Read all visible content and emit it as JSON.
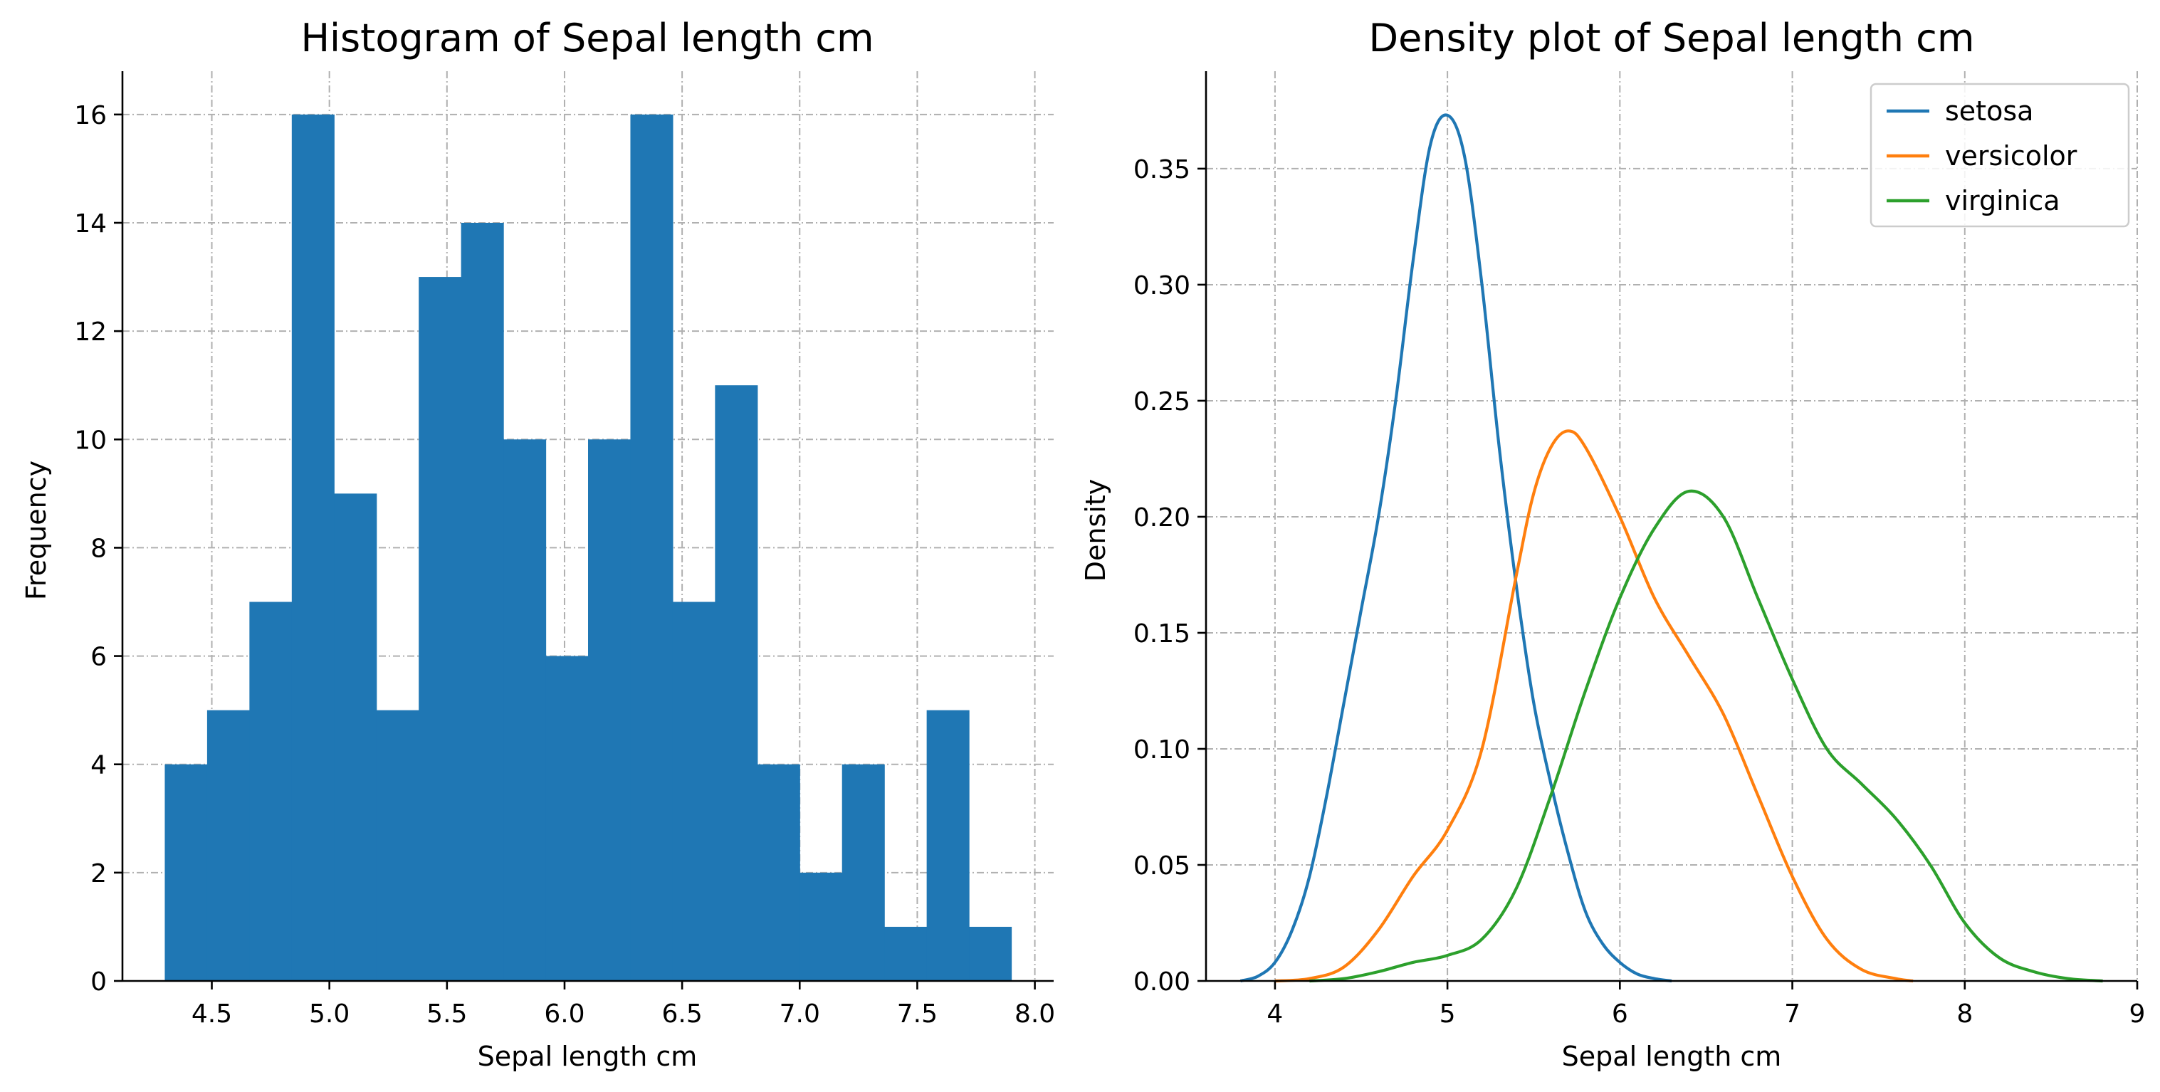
{
  "chart_data": [
    {
      "type": "bar",
      "title": "Histogram of Sepal length cm",
      "xlabel": "Sepal length cm",
      "ylabel": "Frequency",
      "xlim": [
        4.12,
        8.08
      ],
      "ylim": [
        0,
        16.8
      ],
      "xticks": [
        "4.5",
        "5.0",
        "5.5",
        "6.0",
        "6.5",
        "7.0",
        "7.5",
        "8.0"
      ],
      "yticks": [
        "0",
        "2",
        "4",
        "6",
        "8",
        "10",
        "12",
        "14",
        "16"
      ],
      "bin_edges": [
        4.3,
        4.48,
        4.66,
        4.84,
        5.02,
        5.2,
        5.38,
        5.56,
        5.74,
        5.92,
        6.1,
        6.28,
        6.46,
        6.64,
        6.82,
        7.0,
        7.18,
        7.36,
        7.54,
        7.72,
        7.9
      ],
      "values": [
        4,
        5,
        7,
        16,
        9,
        5,
        13,
        14,
        10,
        6,
        10,
        16,
        7,
        11,
        4,
        2,
        4,
        1,
        5,
        1
      ],
      "bar_color": "#1f77b4",
      "grid": true
    },
    {
      "type": "line",
      "title": "Density plot of Sepal length cm",
      "xlabel": "Sepal length cm",
      "ylabel": "Density",
      "xlim": [
        3.6,
        9.0
      ],
      "ylim": [
        0,
        0.392
      ],
      "xticks": [
        "4",
        "5",
        "6",
        "7",
        "8",
        "9"
      ],
      "yticks": [
        "0.00",
        "0.05",
        "0.10",
        "0.15",
        "0.20",
        "0.25",
        "0.30",
        "0.35"
      ],
      "legend_position": "top-right",
      "grid": true,
      "series": [
        {
          "name": "setosa",
          "color": "#1f77b4",
          "x": [
            3.8,
            3.9,
            4.0,
            4.1,
            4.2,
            4.3,
            4.4,
            4.5,
            4.6,
            4.7,
            4.8,
            4.9,
            5.0,
            5.1,
            5.2,
            5.3,
            5.4,
            5.5,
            5.6,
            5.7,
            5.8,
            5.9,
            6.0,
            6.1,
            6.2,
            6.3
          ],
          "y": [
            0.0,
            0.002,
            0.008,
            0.022,
            0.045,
            0.08,
            0.12,
            0.16,
            0.2,
            0.25,
            0.31,
            0.36,
            0.373,
            0.355,
            0.3,
            0.23,
            0.17,
            0.12,
            0.085,
            0.055,
            0.03,
            0.016,
            0.008,
            0.003,
            0.001,
            0.0
          ]
        },
        {
          "name": "versicolor",
          "color": "#ff7f0e",
          "x": [
            4.0,
            4.2,
            4.4,
            4.6,
            4.8,
            5.0,
            5.2,
            5.4,
            5.5,
            5.6,
            5.7,
            5.8,
            6.0,
            6.2,
            6.4,
            6.6,
            6.8,
            7.0,
            7.2,
            7.4,
            7.6,
            7.7
          ],
          "y": [
            0.0,
            0.001,
            0.006,
            0.022,
            0.045,
            0.065,
            0.1,
            0.175,
            0.21,
            0.23,
            0.237,
            0.23,
            0.2,
            0.165,
            0.14,
            0.115,
            0.08,
            0.045,
            0.018,
            0.005,
            0.001,
            0.0
          ]
        },
        {
          "name": "virginica",
          "color": "#2ca02c",
          "x": [
            4.2,
            4.4,
            4.6,
            4.8,
            5.0,
            5.2,
            5.4,
            5.6,
            5.8,
            6.0,
            6.2,
            6.4,
            6.6,
            6.8,
            7.0,
            7.2,
            7.4,
            7.6,
            7.8,
            8.0,
            8.2,
            8.4,
            8.6,
            8.8
          ],
          "y": [
            0.0,
            0.001,
            0.004,
            0.008,
            0.011,
            0.018,
            0.04,
            0.08,
            0.125,
            0.165,
            0.195,
            0.211,
            0.2,
            0.165,
            0.13,
            0.1,
            0.085,
            0.07,
            0.05,
            0.025,
            0.01,
            0.004,
            0.001,
            0.0
          ]
        }
      ]
    }
  ]
}
